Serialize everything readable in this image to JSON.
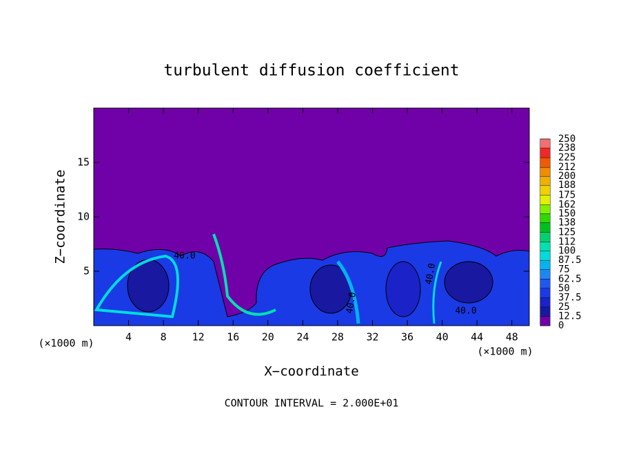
{
  "chart_data": {
    "type": "contour",
    "title": "turbulent diffusion coefficient",
    "xlabel": "X−coordinate",
    "ylabel": "Z−coordinate",
    "x_unit_left": "(×1000 m)",
    "x_unit_right": "(×1000 m)",
    "footnote": "CONTOUR INTERVAL = 2.000E+01",
    "xlim": [
      0,
      50
    ],
    "ylim": [
      0,
      20
    ],
    "xticks": [
      4,
      8,
      12,
      16,
      20,
      24,
      28,
      32,
      36,
      40,
      44,
      48
    ],
    "yticks": [
      5,
      10,
      15
    ],
    "contour_labels": [
      "40.0",
      "40.0",
      "40.0",
      "40.0"
    ],
    "colorbar": {
      "ticks": [
        0,
        12.5,
        25,
        37.5,
        50,
        62.5,
        75,
        87.5,
        100,
        112,
        125,
        138,
        150,
        162,
        175,
        188,
        200,
        212,
        225,
        238,
        250
      ],
      "colors": [
        "#7000a8",
        "#1818a0",
        "#1a22c8",
        "#1a3ae6",
        "#2058f0",
        "#1e86f0",
        "#00b4f0",
        "#00dcdc",
        "#00e0b0",
        "#00d070",
        "#00c020",
        "#30d800",
        "#80f000",
        "#e0f000",
        "#f0d000",
        "#f0b000",
        "#f08c00",
        "#f05a00",
        "#f02828",
        "#f07070"
      ]
    }
  }
}
